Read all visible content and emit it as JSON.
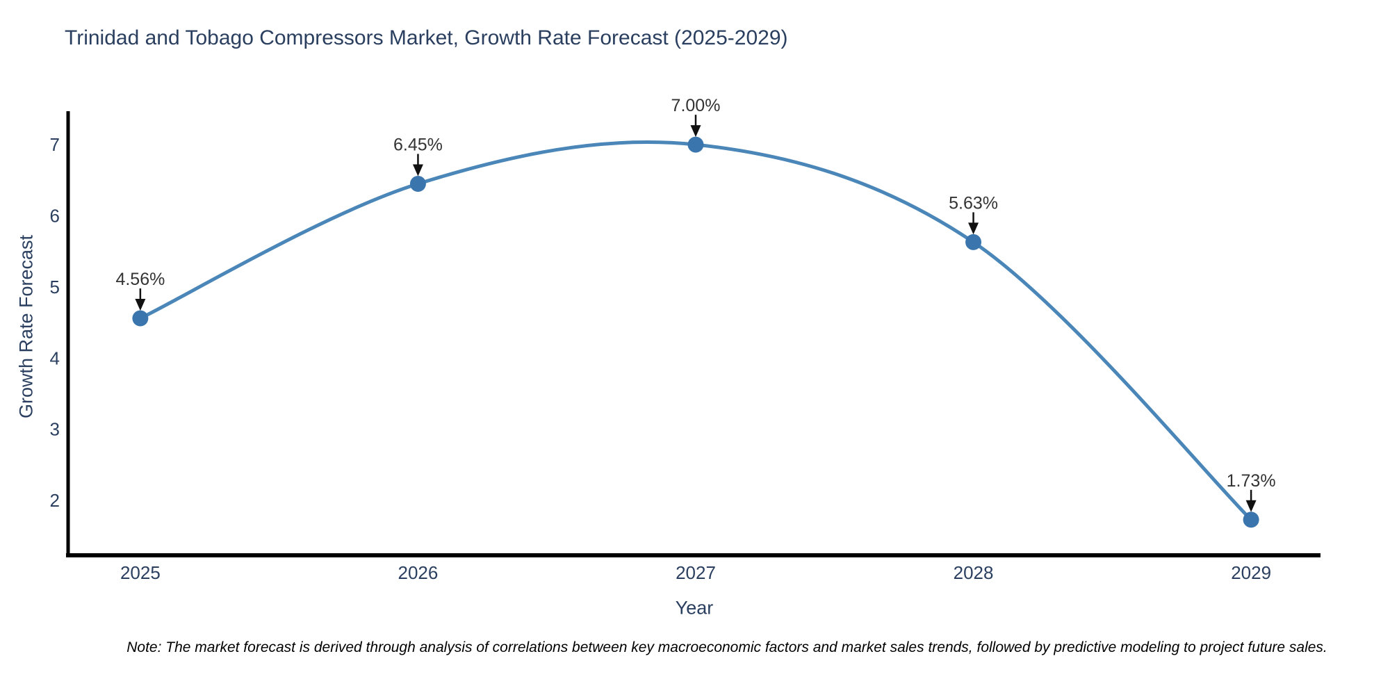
{
  "chart_data": {
    "type": "line",
    "line_shape": "spline",
    "title": "Trinidad and Tobago Compressors Market, Growth Rate Forecast (2025-2029)",
    "xlabel": "Year",
    "ylabel": "Growth Rate Forecast",
    "x": [
      2025,
      2026,
      2027,
      2028,
      2029
    ],
    "values": [
      4.56,
      6.45,
      7.0,
      5.63,
      1.73
    ],
    "point_labels": [
      "4.56%",
      "6.45%",
      "7.00%",
      "5.63%",
      "1.73%"
    ],
    "xticks": [
      "2025",
      "2026",
      "2027",
      "2028",
      "2029"
    ],
    "xtick_values": [
      2025,
      2026,
      2027,
      2028,
      2029
    ],
    "yticks": [
      2,
      3,
      4,
      5,
      6,
      7
    ],
    "xlim": [
      2024.74,
      2029.25
    ],
    "ylim": [
      1.23,
      7.47
    ],
    "grid": false,
    "legend": "none",
    "colors": {
      "line": "#4a86b8",
      "marker": "#3a76ad",
      "axis_line": "#000000",
      "tick_text": "#2a3f5f",
      "annotation_text": "#333333",
      "annotation_arrow": "#111111"
    }
  },
  "note": "Note: The market forecast is derived through analysis of correlations between key macroeconomic factors and market sales trends, followed by predictive modeling to project future sales."
}
